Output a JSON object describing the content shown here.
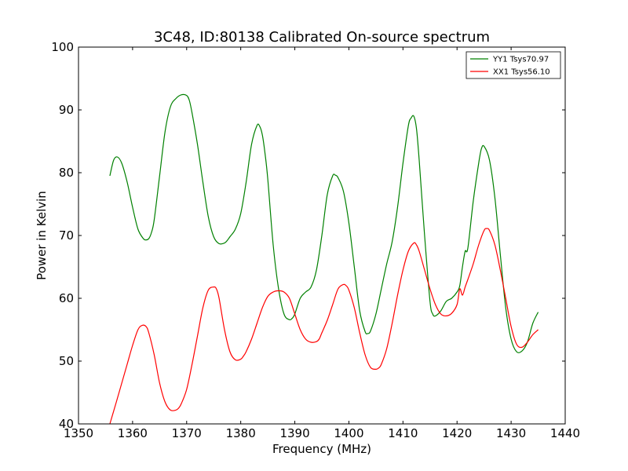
{
  "chart_data": {
    "type": "line",
    "title": "3C48, ID:80138 Calibrated On-source spectrum",
    "xlabel": "Frequency (MHz)",
    "ylabel": "Power in Kelvin",
    "xlim": [
      1350,
      1440
    ],
    "ylim": [
      40,
      100
    ],
    "xticks": [
      1350,
      1360,
      1370,
      1380,
      1390,
      1400,
      1410,
      1420,
      1430,
      1440
    ],
    "yticks": [
      40,
      50,
      60,
      70,
      80,
      90,
      100
    ],
    "xtick_labels": [
      "1350",
      "1360",
      "1370",
      "1380",
      "1390",
      "1400",
      "1410",
      "1420",
      "1430",
      "1440"
    ],
    "ytick_labels": [
      "40",
      "50",
      "60",
      "70",
      "80",
      "90",
      "100"
    ],
    "grid": false,
    "legend_position": "top-right",
    "series": [
      {
        "name": "YY1 Tsys70.97",
        "color": "#008000",
        "x": [
          1355.8,
          1356.5,
          1357.2,
          1358,
          1359,
          1360,
          1361,
          1362,
          1362.5,
          1363,
          1363.5,
          1364,
          1365,
          1366,
          1367,
          1368,
          1369,
          1370,
          1370.5,
          1371,
          1372,
          1373,
          1374,
          1375,
          1376,
          1377,
          1377.5,
          1378,
          1379,
          1380,
          1381,
          1382,
          1383,
          1383.5,
          1384,
          1384.5,
          1385,
          1386,
          1387,
          1388,
          1389,
          1389.5,
          1390,
          1391,
          1392,
          1393,
          1394,
          1395,
          1396,
          1397,
          1397.5,
          1398,
          1399,
          1400,
          1401,
          1402,
          1403,
          1403.5,
          1404,
          1405,
          1406,
          1407,
          1408,
          1409,
          1410,
          1411,
          1411.5,
          1412,
          1412.5,
          1413,
          1414,
          1415,
          1415.5,
          1416,
          1417,
          1418,
          1419,
          1420,
          1420.5,
          1421,
          1421.5,
          1422,
          1423,
          1424,
          1424.5,
          1425,
          1426,
          1427,
          1428,
          1429,
          1430,
          1431,
          1432,
          1433,
          1434,
          1435
        ],
        "y": [
          79.5,
          82.0,
          82.5,
          81.5,
          78.5,
          74.5,
          71.0,
          69.5,
          69.3,
          69.5,
          70.5,
          72.5,
          79.5,
          86.5,
          90.5,
          91.8,
          92.4,
          92.3,
          91.5,
          89.5,
          84.5,
          78.5,
          73.0,
          69.8,
          68.7,
          68.8,
          69.2,
          69.8,
          71.0,
          73.5,
          78.5,
          84.5,
          87.5,
          87.4,
          86.0,
          83.0,
          79.0,
          68.5,
          61.5,
          57.5,
          56.6,
          56.8,
          57.5,
          60.0,
          61.0,
          61.8,
          64.5,
          70.0,
          76.5,
          79.5,
          79.6,
          79.2,
          77.0,
          72.0,
          65.0,
          58.0,
          54.7,
          54.4,
          54.8,
          57.5,
          61.5,
          65.5,
          69.0,
          74.5,
          81.5,
          87.5,
          88.7,
          89.0,
          87.0,
          82.0,
          70.0,
          59.5,
          57.5,
          57.2,
          58.0,
          59.5,
          60.0,
          61.0,
          62.0,
          65.0,
          67.5,
          68.0,
          75.5,
          81.5,
          83.8,
          84.2,
          82.0,
          76.0,
          67.0,
          58.5,
          53.5,
          51.5,
          51.6,
          53.0,
          56.0,
          57.8
        ]
      },
      {
        "name": "XX1 Tsys56.10",
        "color": "#ff0000",
        "x": [
          1355.8,
          1357,
          1358,
          1359,
          1360,
          1361,
          1361.8,
          1362.5,
          1363,
          1364,
          1365,
          1366,
          1367,
          1368,
          1368.5,
          1369,
          1370,
          1371,
          1372,
          1373,
          1374,
          1375,
          1375.5,
          1376,
          1377,
          1378,
          1379,
          1380,
          1380.5,
          1381,
          1382,
          1383,
          1384,
          1385,
          1386,
          1387,
          1388,
          1389,
          1390,
          1391,
          1392,
          1393,
          1394,
          1394.5,
          1395,
          1396,
          1397,
          1398,
          1399,
          1399.5,
          1400,
          1401,
          1402,
          1403,
          1404,
          1405,
          1405.5,
          1406,
          1407,
          1408,
          1409,
          1410,
          1411,
          1412,
          1412.5,
          1413,
          1414,
          1415,
          1416,
          1417,
          1418,
          1419,
          1420,
          1420.5,
          1421,
          1421.5,
          1422,
          1423,
          1424,
          1425,
          1425.5,
          1426,
          1427,
          1428,
          1429,
          1430,
          1431,
          1432,
          1433,
          1434,
          1435
        ],
        "y": [
          40.0,
          43.5,
          46.5,
          49.5,
          52.5,
          55.0,
          55.7,
          55.5,
          54.5,
          51.0,
          46.5,
          43.5,
          42.2,
          42.2,
          42.5,
          43.2,
          45.5,
          49.5,
          54.0,
          58.5,
          61.3,
          61.8,
          61.5,
          60.0,
          55.0,
          51.5,
          50.2,
          50.3,
          50.8,
          51.5,
          53.5,
          56.0,
          58.5,
          60.3,
          61.0,
          61.2,
          61.0,
          60.0,
          57.5,
          55.0,
          53.5,
          53.0,
          53.1,
          53.5,
          54.5,
          56.5,
          59.0,
          61.5,
          62.2,
          62.0,
          61.3,
          58.5,
          54.5,
          51.0,
          49.0,
          48.7,
          48.9,
          49.5,
          52.0,
          56.0,
          60.5,
          64.5,
          67.5,
          68.8,
          68.5,
          67.5,
          64.5,
          61.5,
          59.0,
          57.5,
          57.2,
          57.6,
          59.0,
          61.5,
          60.5,
          61.8,
          63.0,
          65.5,
          68.5,
          70.8,
          71.1,
          70.8,
          68.5,
          64.5,
          60.0,
          55.5,
          52.7,
          52.2,
          53.0,
          54.2,
          55.0
        ]
      }
    ]
  }
}
